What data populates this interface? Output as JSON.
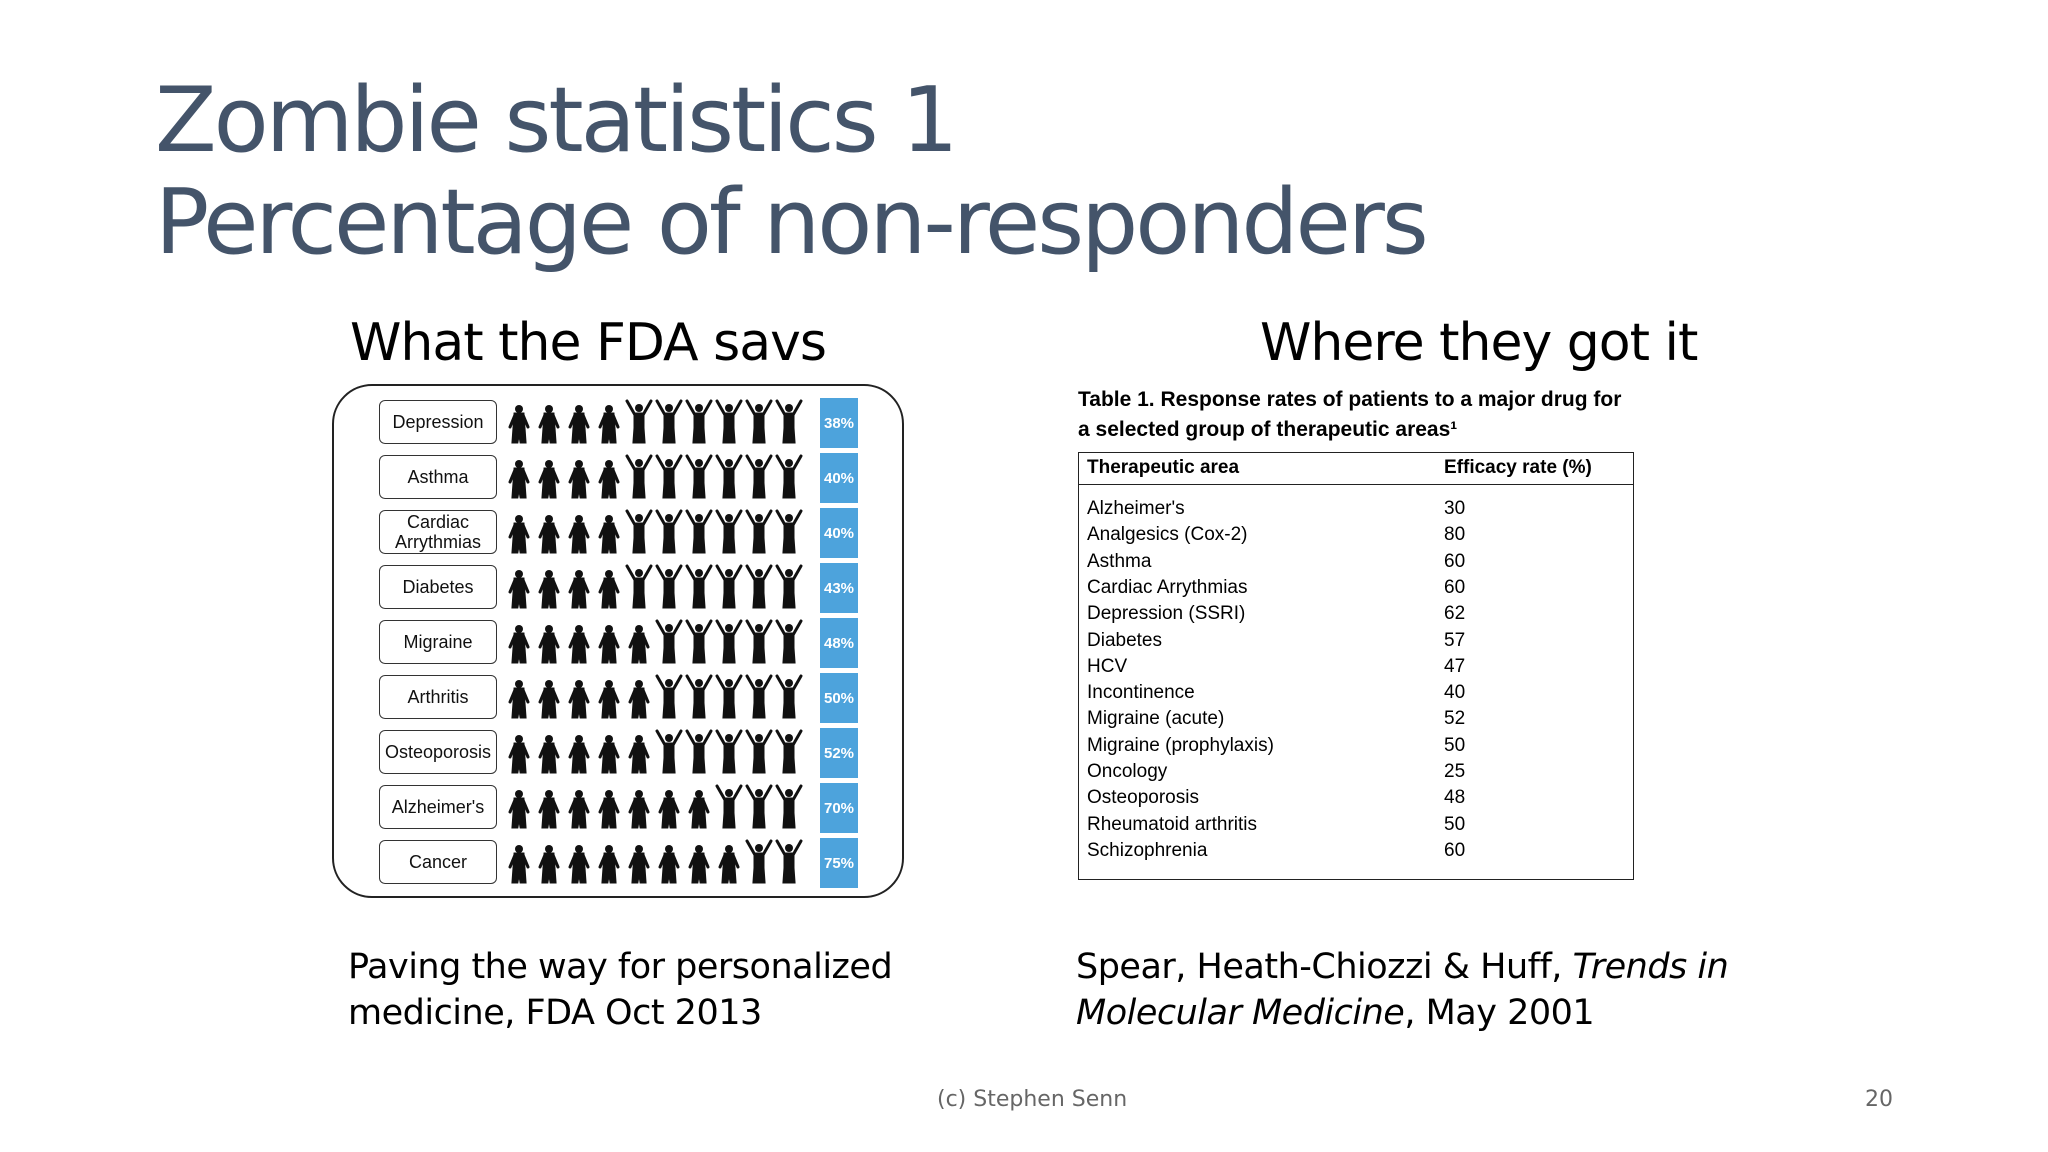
{
  "slide": {
    "title_line1": "Zombie statistics 1",
    "title_line2": "Percentage of non-responders",
    "left_heading": "What the FDA savs",
    "right_heading": "Where they got it",
    "footer": "(c) Stephen Senn",
    "page_number": "20"
  },
  "fda_graphic": {
    "bar_color": "#4da3dc",
    "rows": [
      {
        "condition": "Depression",
        "percent_label": "38%",
        "nonresponders": 4
      },
      {
        "condition": "Asthma",
        "percent_label": "40%",
        "nonresponders": 4
      },
      {
        "condition": "Cardiac Arrythmias",
        "percent_label": "40%",
        "nonresponders": 4
      },
      {
        "condition": "Diabetes",
        "percent_label": "43%",
        "nonresponders": 4
      },
      {
        "condition": "Migraine",
        "percent_label": "48%",
        "nonresponders": 5
      },
      {
        "condition": "Arthritis",
        "percent_label": "50%",
        "nonresponders": 5
      },
      {
        "condition": "Osteoporosis",
        "percent_label": "52%",
        "nonresponders": 5
      },
      {
        "condition": "Alzheimer's",
        "percent_label": "70%",
        "nonresponders": 7
      },
      {
        "condition": "Cancer",
        "percent_label": "75%",
        "nonresponders": 8
      }
    ]
  },
  "source_table": {
    "caption_line1": "Table 1. Response rates of patients to a major drug for",
    "caption_line2": "a selected group of therapeutic areas¹",
    "header_area": "Therapeutic area",
    "header_rate": "Efficacy rate (%)",
    "rows": [
      {
        "area": "Alzheimer's",
        "rate": "30"
      },
      {
        "area": "Analgesics (Cox-2)",
        "rate": "80"
      },
      {
        "area": "Asthma",
        "rate": "60"
      },
      {
        "area": "Cardiac Arrythmias",
        "rate": "60"
      },
      {
        "area": "Depression (SSRI)",
        "rate": "62"
      },
      {
        "area": "Diabetes",
        "rate": "57"
      },
      {
        "area": "HCV",
        "rate": "47"
      },
      {
        "area": "Incontinence",
        "rate": "40"
      },
      {
        "area": "Migraine (acute)",
        "rate": "52"
      },
      {
        "area": "Migraine (prophylaxis)",
        "rate": "50"
      },
      {
        "area": "Oncology",
        "rate": "25"
      },
      {
        "area": "Osteoporosis",
        "rate": "48"
      },
      {
        "area": "Rheumatoid arthritis",
        "rate": "50"
      },
      {
        "area": "Schizophrenia",
        "rate": "60"
      }
    ]
  },
  "references": {
    "fda_line1": "Paving the way for personalized",
    "fda_line2": "medicine,  FDA Oct 2013",
    "source_authors": "Spear, Heath-Chiozzi & Huff, ",
    "source_journal_part1": "Trends in",
    "source_journal_part2": "Molecular Medicine",
    "source_date": ", May 2001"
  }
}
